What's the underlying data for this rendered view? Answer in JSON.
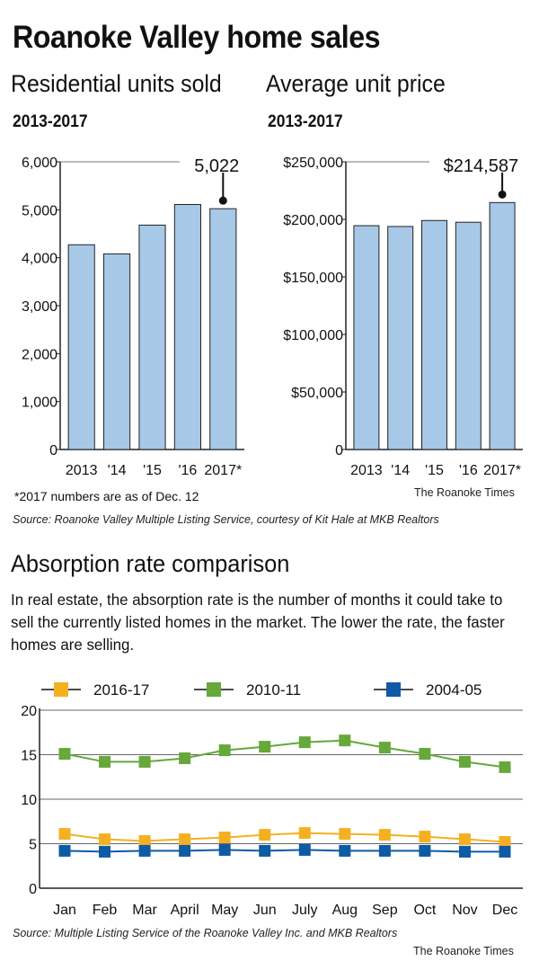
{
  "header": {
    "title": "Roanoke Valley home sales",
    "left_subtitle": "Residential units sold",
    "right_subtitle": "Average unit price",
    "left_range": "2013-2017",
    "right_range": "2013-2017"
  },
  "footnote": "*2017 numbers are as of Dec. 12",
  "credit_top": "The Roanoke Times",
  "source_top": "Source: Roanoke Valley Multiple Listing Service, courtesy of Kit Hale at MKB Realtors",
  "absorption": {
    "title": "Absorption rate comparison",
    "description": "In real estate, the absorption rate is the number of months it could take to sell the currently listed homes in the market.  The lower the rate, the faster homes are selling."
  },
  "source_bottom": "Source: Multiple Listing Service of the Roanoke Valley Inc. and MKB Realtors",
  "credit_bottom": "The Roanoke Times",
  "chart_data": [
    {
      "type": "bar",
      "title": "Residential units sold",
      "subtitle": "2013-2017",
      "categories": [
        "2013",
        "'14",
        "'15",
        "'16",
        "2017*"
      ],
      "values": [
        4270,
        4080,
        4680,
        5110,
        5022
      ],
      "y_ticks": [
        "0",
        "1,000",
        "2,000",
        "3,000",
        "4,000",
        "5,000",
        "6,000"
      ],
      "ylim": [
        0,
        6000
      ],
      "callout": {
        "category": "2017*",
        "label": "5,022"
      },
      "bar_color": "#a8c8e8"
    },
    {
      "type": "bar",
      "title": "Average unit price",
      "subtitle": "2013-2017",
      "categories": [
        "2013",
        "'14",
        "'15",
        "'16",
        "2017*"
      ],
      "values": [
        194500,
        193800,
        199000,
        197500,
        214587
      ],
      "y_ticks": [
        "0",
        "$50,000",
        "$100,000",
        "$150,000",
        "$200,000",
        "$250,000"
      ],
      "ylim": [
        0,
        250000
      ],
      "callout": {
        "category": "2017*",
        "label": "$214,587"
      },
      "bar_color": "#a8c8e8"
    },
    {
      "type": "line",
      "title": "Absorption rate comparison",
      "categories": [
        "Jan",
        "Feb",
        "Mar",
        "April",
        "May",
        "Jun",
        "July",
        "Aug",
        "Sep",
        "Oct",
        "Nov",
        "Dec"
      ],
      "y_ticks": [
        "0",
        "5",
        "10",
        "15",
        "20"
      ],
      "ylim": [
        0,
        20
      ],
      "grid": true,
      "series": [
        {
          "name": "2016-17",
          "color": "#f5b021",
          "values": [
            6.1,
            5.5,
            5.3,
            5.5,
            5.7,
            6.0,
            6.2,
            6.1,
            6.0,
            5.8,
            5.5,
            5.2
          ]
        },
        {
          "name": "2010-11",
          "color": "#66a83a",
          "values": [
            15.1,
            14.2,
            14.2,
            14.6,
            15.5,
            15.9,
            16.4,
            16.6,
            15.8,
            15.1,
            14.2,
            13.6
          ]
        },
        {
          "name": "2004-05",
          "color": "#0f5aa6",
          "values": [
            4.2,
            4.1,
            4.2,
            4.2,
            4.3,
            4.2,
            4.3,
            4.2,
            4.2,
            4.2,
            4.1,
            4.1
          ]
        }
      ]
    }
  ]
}
